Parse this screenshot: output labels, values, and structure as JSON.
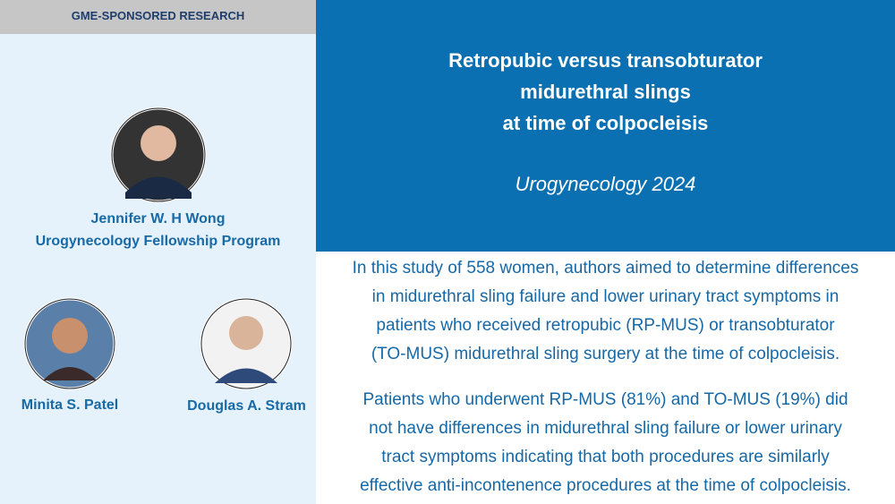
{
  "header": {
    "tag": "GME-SPONSORED RESEARCH",
    "title_lines": [
      "Retropubic versus transobturator",
      "midurethral slings",
      "at time of colpocleisis"
    ],
    "journal": "Urogynecology 2024"
  },
  "authors": [
    {
      "name": "Jennifer W. H Wong",
      "affiliation": "Urogynecology Fellowship Program"
    },
    {
      "name": "Minita S. Patel"
    },
    {
      "name": "Douglas A. Stram"
    }
  ],
  "paragraphs": [
    [
      "In this study of 558 women, authors aimed to determine differences",
      "in midurethral sling failure and lower urinary tract symptoms in",
      "patients who received retropubic (RP-MUS) or transobturator",
      "(TO-MUS) midurethral sling surgery at the time of colpocleisis."
    ],
    [
      "Patients who underwent RP-MUS (81%) and TO-MUS (19%) did",
      "not have differences in midurethral sling failure or lower urinary",
      "tract symptoms indicating that both procedures are similarly",
      "effective anti-incontenence procedures at the time of colpocleisis."
    ]
  ]
}
